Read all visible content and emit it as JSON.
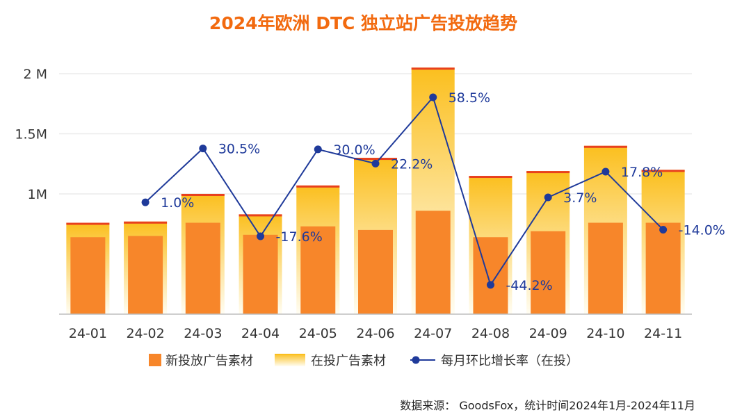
{
  "chart_data": {
    "type": "bar",
    "title": "2024年欧洲 DTC 独立站广告投放趋势",
    "categories": [
      "24-01",
      "24-02",
      "24-03",
      "24-04",
      "24-05",
      "24-06",
      "24-07",
      "24-08",
      "24-09",
      "24-10",
      "24-11"
    ],
    "ylim": [
      0,
      2150000
    ],
    "yticks": [
      {
        "value": 1000000,
        "label": "1M"
      },
      {
        "value": 1500000,
        "label": "1.5M"
      },
      {
        "value": 2000000,
        "label": "2 M"
      }
    ],
    "grid": true,
    "legend_position": "bottom",
    "series": [
      {
        "name": "新投放广告素材",
        "type": "bar",
        "values": [
          640000,
          650000,
          760000,
          660000,
          730000,
          700000,
          860000,
          640000,
          690000,
          760000,
          760000
        ]
      },
      {
        "name": "在投广告素材",
        "type": "bar",
        "values": [
          760000,
          770000,
          1000000,
          830000,
          1070000,
          1300000,
          2050000,
          1150000,
          1190000,
          1400000,
          1200000
        ]
      },
      {
        "name": "每月环比增长率（在投）",
        "type": "line",
        "values": [
          null,
          1.0,
          30.5,
          -17.6,
          30.0,
          22.2,
          58.5,
          -44.2,
          3.7,
          17.8,
          -14.0
        ],
        "labels": [
          "",
          "1.0%",
          "30.5%",
          "-17.6%",
          "30.0%",
          "22.2%",
          "58.5%",
          "-44.2%",
          "3.7%",
          "17.8%",
          "-14.0%"
        ]
      }
    ],
    "colors": {
      "new_bar": "#f7862a",
      "active_bar_top": "#fbbf1e",
      "active_bar_bottom": "#fffdf2",
      "active_bar_cap": "#e8401e",
      "line": "#1f3a9a",
      "grid": "#ebebeb"
    }
  },
  "footer": {
    "source": "数据来源： GoodsFox，统计时间2024年1月-2024年11月"
  }
}
